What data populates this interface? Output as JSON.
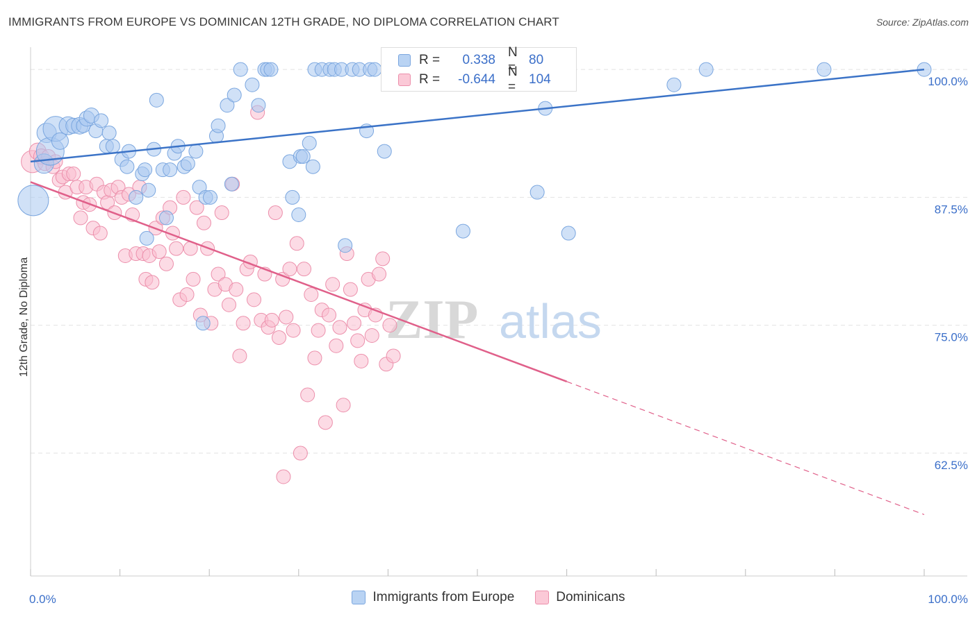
{
  "title": "IMMIGRANTS FROM EUROPE VS DOMINICAN 12TH GRADE, NO DIPLOMA CORRELATION CHART",
  "source": "Source: ZipAtlas.com",
  "watermark": {
    "zip": "ZIP",
    "atlas": "atlas"
  },
  "legend": {
    "rows": [
      {
        "r_label": "R =",
        "r_value": "0.338",
        "n_label": "N =",
        "n_value": "80",
        "color": "#a8c8f0",
        "stroke": "#7aa6df"
      },
      {
        "r_label": "R =",
        "r_value": "-0.644",
        "n_label": "N =",
        "n_value": "104",
        "color": "#f7b6c8",
        "stroke": "#ec8fab"
      }
    ]
  },
  "bottom_legend": [
    {
      "label": "Immigrants from Europe",
      "color": "#b9d3f3",
      "stroke": "#7aa6df"
    },
    {
      "label": "Dominicans",
      "color": "#fbc9d7",
      "stroke": "#ec8fab"
    }
  ],
  "colors": {
    "blue": "#3b73c7",
    "pink": "#e0608a",
    "blue_fill": "#a9c9f1",
    "pink_fill": "#f9bdd0",
    "tick_label": "#3b6fc9",
    "grid": "#e2e2e2"
  },
  "chart_data": {
    "type": "scatter",
    "title": "IMMIGRANTS FROM EUROPE VS DOMINICAN 12TH GRADE, NO DIPLOMA CORRELATION CHART",
    "xlabel": "",
    "ylabel": "12th Grade, No Diploma",
    "xlim": [
      0,
      100
    ],
    "ylim": [
      50.5,
      101.5
    ],
    "x_tick_labels": [
      "0.0%",
      "100.0%"
    ],
    "y_ticks": [
      62.5,
      75.0,
      87.5,
      100.0
    ],
    "y_tick_labels": [
      "62.5%",
      "75.0%",
      "87.5%",
      "100.0%"
    ],
    "grid": true,
    "legend_position": "top-center",
    "series": [
      {
        "name": "Immigrants from Europe",
        "trend": {
          "x": [
            0,
            100
          ],
          "y": [
            91.0,
            100.0
          ],
          "dashed_from": null
        },
        "points": [
          [
            0.3,
            87.2,
            22
          ],
          [
            1.5,
            90.8,
            14
          ],
          [
            1.8,
            93.8,
            14
          ],
          [
            2.2,
            92.0,
            20
          ],
          [
            2.8,
            94.2,
            18
          ],
          [
            3.3,
            93.0,
            12
          ],
          [
            4.2,
            94.5,
            13
          ],
          [
            4.8,
            94.5,
            11
          ],
          [
            5.5,
            94.5,
            12
          ],
          [
            5.9,
            94.5,
            10
          ],
          [
            6.3,
            95.2,
            11
          ],
          [
            6.8,
            95.5,
            11
          ],
          [
            7.3,
            94.0,
            10
          ],
          [
            7.9,
            95.0,
            10
          ],
          [
            8.8,
            93.8,
            10
          ],
          [
            8.5,
            92.5,
            10
          ],
          [
            9.2,
            92.5,
            10
          ],
          [
            10.2,
            91.2,
            10
          ],
          [
            10.8,
            90.5,
            10
          ],
          [
            11.0,
            92.0,
            10
          ],
          [
            11.8,
            87.5,
            10
          ],
          [
            12.5,
            89.8,
            10
          ],
          [
            12.8,
            90.2,
            10
          ],
          [
            13.2,
            88.2,
            10
          ],
          [
            13.0,
            83.5,
            10
          ],
          [
            13.8,
            92.2,
            10
          ],
          [
            14.1,
            97.0,
            10
          ],
          [
            14.8,
            90.2,
            10
          ],
          [
            15.2,
            85.5,
            10
          ],
          [
            15.6,
            90.2,
            10
          ],
          [
            16.1,
            91.8,
            10
          ],
          [
            16.5,
            92.5,
            10
          ],
          [
            17.2,
            90.5,
            10
          ],
          [
            17.6,
            90.8,
            10
          ],
          [
            18.5,
            92.0,
            10
          ],
          [
            18.9,
            88.5,
            10
          ],
          [
            19.3,
            75.2,
            10
          ],
          [
            19.6,
            87.5,
            10
          ],
          [
            20.1,
            87.5,
            10
          ],
          [
            20.8,
            93.5,
            10
          ],
          [
            21.0,
            94.5,
            10
          ],
          [
            22.0,
            96.5,
            10
          ],
          [
            22.5,
            88.8,
            10
          ],
          [
            22.8,
            97.5,
            10
          ],
          [
            23.5,
            100.0,
            10
          ],
          [
            24.8,
            98.5,
            10
          ],
          [
            25.5,
            96.5,
            10
          ],
          [
            26.2,
            100.0,
            10
          ],
          [
            26.5,
            100.0,
            10
          ],
          [
            26.9,
            100.0,
            10
          ],
          [
            29.0,
            91.0,
            10
          ],
          [
            29.3,
            87.5,
            10
          ],
          [
            30.0,
            85.8,
            10
          ],
          [
            30.2,
            91.5,
            10
          ],
          [
            30.5,
            91.5,
            10
          ],
          [
            31.2,
            92.8,
            10
          ],
          [
            31.6,
            90.5,
            10
          ],
          [
            31.8,
            100.0,
            10
          ],
          [
            32.6,
            100.0,
            10
          ],
          [
            33.5,
            100.0,
            10
          ],
          [
            34.0,
            100.0,
            10
          ],
          [
            34.8,
            100.0,
            10
          ],
          [
            35.2,
            82.8,
            10
          ],
          [
            36.0,
            100.0,
            10
          ],
          [
            36.8,
            100.0,
            10
          ],
          [
            37.6,
            94.0,
            10
          ],
          [
            38.0,
            100.0,
            10
          ],
          [
            38.5,
            100.0,
            10
          ],
          [
            39.6,
            92.0,
            10
          ],
          [
            40.2,
            100.0,
            10
          ],
          [
            45.3,
            100.0,
            10
          ],
          [
            48.4,
            84.2,
            10
          ],
          [
            52.6,
            100.0,
            10
          ],
          [
            56.7,
            88.0,
            10
          ],
          [
            57.6,
            96.2,
            10
          ],
          [
            60.2,
            84.0,
            10
          ],
          [
            72.0,
            98.5,
            10
          ],
          [
            75.6,
            100.0,
            10
          ],
          [
            88.8,
            100.0,
            10
          ],
          [
            100.0,
            100.0,
            10
          ]
        ]
      },
      {
        "name": "Dominicans",
        "trend": {
          "x": [
            0,
            100
          ],
          "y": [
            89.0,
            56.5
          ],
          "dashed_from": 60
        },
        "points": [
          [
            0.2,
            91.0,
            16
          ],
          [
            0.8,
            92.0,
            12
          ],
          [
            1.2,
            91.5,
            11
          ],
          [
            1.6,
            90.8,
            10
          ],
          [
            2.0,
            91.5,
            10
          ],
          [
            2.5,
            90.5,
            10
          ],
          [
            2.8,
            91.0,
            10
          ],
          [
            3.2,
            89.2,
            10
          ],
          [
            3.6,
            89.5,
            10
          ],
          [
            3.9,
            88.0,
            10
          ],
          [
            4.3,
            89.8,
            10
          ],
          [
            4.8,
            89.8,
            10
          ],
          [
            5.2,
            88.5,
            10
          ],
          [
            5.6,
            85.5,
            10
          ],
          [
            5.9,
            87.0,
            10
          ],
          [
            6.2,
            88.5,
            10
          ],
          [
            6.6,
            86.8,
            10
          ],
          [
            7.0,
            84.5,
            10
          ],
          [
            7.4,
            88.8,
            10
          ],
          [
            7.8,
            84.0,
            10
          ],
          [
            8.2,
            88.0,
            10
          ],
          [
            8.6,
            87.0,
            10
          ],
          [
            9.0,
            88.2,
            10
          ],
          [
            9.4,
            86.0,
            10
          ],
          [
            9.8,
            88.5,
            10
          ],
          [
            10.2,
            87.5,
            10
          ],
          [
            10.6,
            81.8,
            10
          ],
          [
            11.0,
            87.8,
            10
          ],
          [
            11.4,
            85.8,
            10
          ],
          [
            11.8,
            82.0,
            10
          ],
          [
            12.2,
            88.5,
            10
          ],
          [
            12.6,
            82.0,
            10
          ],
          [
            12.9,
            79.5,
            10
          ],
          [
            13.3,
            81.8,
            10
          ],
          [
            13.6,
            79.2,
            10
          ],
          [
            14.0,
            84.5,
            10
          ],
          [
            14.4,
            82.2,
            10
          ],
          [
            14.8,
            85.5,
            10
          ],
          [
            15.2,
            81.0,
            10
          ],
          [
            15.6,
            86.5,
            10
          ],
          [
            15.9,
            84.0,
            10
          ],
          [
            16.3,
            82.5,
            10
          ],
          [
            16.7,
            77.5,
            10
          ],
          [
            17.1,
            87.5,
            10
          ],
          [
            17.5,
            78.0,
            10
          ],
          [
            17.9,
            82.5,
            10
          ],
          [
            18.2,
            79.5,
            10
          ],
          [
            18.6,
            86.5,
            10
          ],
          [
            19.0,
            76.0,
            10
          ],
          [
            19.4,
            85.0,
            10
          ],
          [
            19.8,
            82.5,
            10
          ],
          [
            20.2,
            75.2,
            10
          ],
          [
            20.6,
            78.5,
            10
          ],
          [
            21.0,
            80.0,
            10
          ],
          [
            21.4,
            86.0,
            10
          ],
          [
            21.8,
            79.0,
            10
          ],
          [
            22.2,
            77.0,
            10
          ],
          [
            22.6,
            88.8,
            10
          ],
          [
            23.0,
            78.5,
            10
          ],
          [
            23.4,
            72.0,
            10
          ],
          [
            23.8,
            75.2,
            10
          ],
          [
            24.2,
            80.5,
            10
          ],
          [
            24.6,
            81.2,
            10
          ],
          [
            25.0,
            77.5,
            10
          ],
          [
            25.4,
            95.8,
            10
          ],
          [
            25.8,
            75.5,
            10
          ],
          [
            26.2,
            80.0,
            10
          ],
          [
            26.6,
            74.8,
            10
          ],
          [
            27.0,
            75.5,
            10
          ],
          [
            27.4,
            86.0,
            10
          ],
          [
            27.8,
            73.8,
            10
          ],
          [
            28.2,
            79.5,
            10
          ],
          [
            28.6,
            75.8,
            10
          ],
          [
            29.0,
            80.5,
            10
          ],
          [
            29.4,
            74.5,
            10
          ],
          [
            29.8,
            83.0,
            10
          ],
          [
            30.2,
            62.5,
            10
          ],
          [
            30.6,
            80.5,
            10
          ],
          [
            31.0,
            68.2,
            10
          ],
          [
            31.4,
            78.0,
            10
          ],
          [
            31.8,
            71.8,
            10
          ],
          [
            32.2,
            74.5,
            10
          ],
          [
            32.6,
            76.5,
            10
          ],
          [
            33.0,
            65.5,
            10
          ],
          [
            33.4,
            76.0,
            10
          ],
          [
            33.8,
            79.0,
            10
          ],
          [
            34.2,
            73.0,
            10
          ],
          [
            34.6,
            74.8,
            10
          ],
          [
            35.0,
            67.2,
            10
          ],
          [
            35.4,
            82.0,
            10
          ],
          [
            35.8,
            78.5,
            10
          ],
          [
            36.2,
            75.2,
            10
          ],
          [
            36.6,
            73.5,
            10
          ],
          [
            37.0,
            71.5,
            10
          ],
          [
            37.4,
            76.5,
            10
          ],
          [
            37.8,
            79.5,
            10
          ],
          [
            38.2,
            74.0,
            10
          ],
          [
            38.6,
            76.0,
            10
          ],
          [
            39.0,
            80.0,
            10
          ],
          [
            39.4,
            81.5,
            10
          ],
          [
            39.8,
            71.2,
            10
          ],
          [
            40.2,
            75.0,
            10
          ],
          [
            40.6,
            72.0,
            10
          ],
          [
            28.3,
            60.2,
            10
          ]
        ]
      }
    ]
  }
}
